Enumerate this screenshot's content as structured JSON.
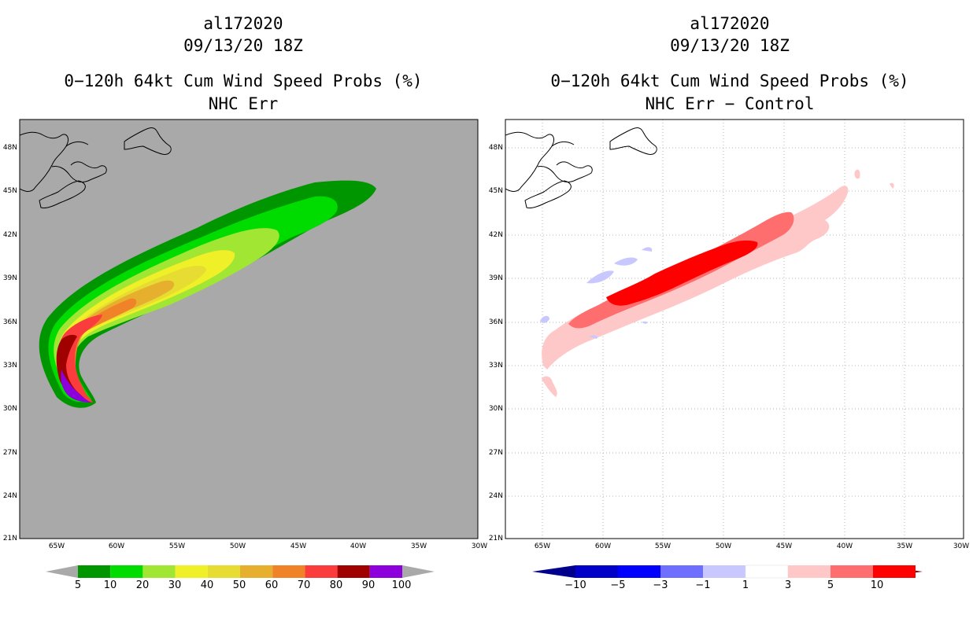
{
  "left": {
    "storm_id": "al172020",
    "date": "09/13/20 18Z",
    "product": "0−120h 64kt Cum Wind Speed Probs (%)",
    "subtitle": "NHC Err",
    "colorbar": {
      "labels": [
        "5",
        "10",
        "20",
        "30",
        "40",
        "50",
        "60",
        "70",
        "80",
        "90",
        "100"
      ],
      "colors": [
        "#009600",
        "#00dc00",
        "#a0e632",
        "#f0f028",
        "#e6dc32",
        "#e6af2d",
        "#f08228",
        "#fa3c3c",
        "#a00000",
        "#8c00dc"
      ]
    }
  },
  "right": {
    "storm_id": "al172020",
    "date": "09/13/20 18Z",
    "product": "0−120h 64kt Cum Wind Speed Probs (%)",
    "subtitle": "NHC Err − Control",
    "colorbar": {
      "labels": [
        "−10",
        "−5",
        "−3",
        "−1",
        "1",
        "3",
        "5",
        "10"
      ],
      "colors": [
        "#0000c8",
        "#0000ff",
        "#6e6eff",
        "#c8c8ff",
        "#ffffff",
        "#ffc8c8",
        "#ff6e6e",
        "#ff0000"
      ]
    }
  },
  "map": {
    "lat_labels": [
      "48N",
      "45N",
      "42N",
      "39N",
      "36N",
      "33N",
      "30N",
      "27N",
      "24N",
      "21N"
    ],
    "lon_labels": [
      "65W",
      "60W",
      "55W",
      "50W",
      "45W",
      "40W",
      "35W",
      "30W"
    ],
    "background_color": "#a9a9a9"
  }
}
